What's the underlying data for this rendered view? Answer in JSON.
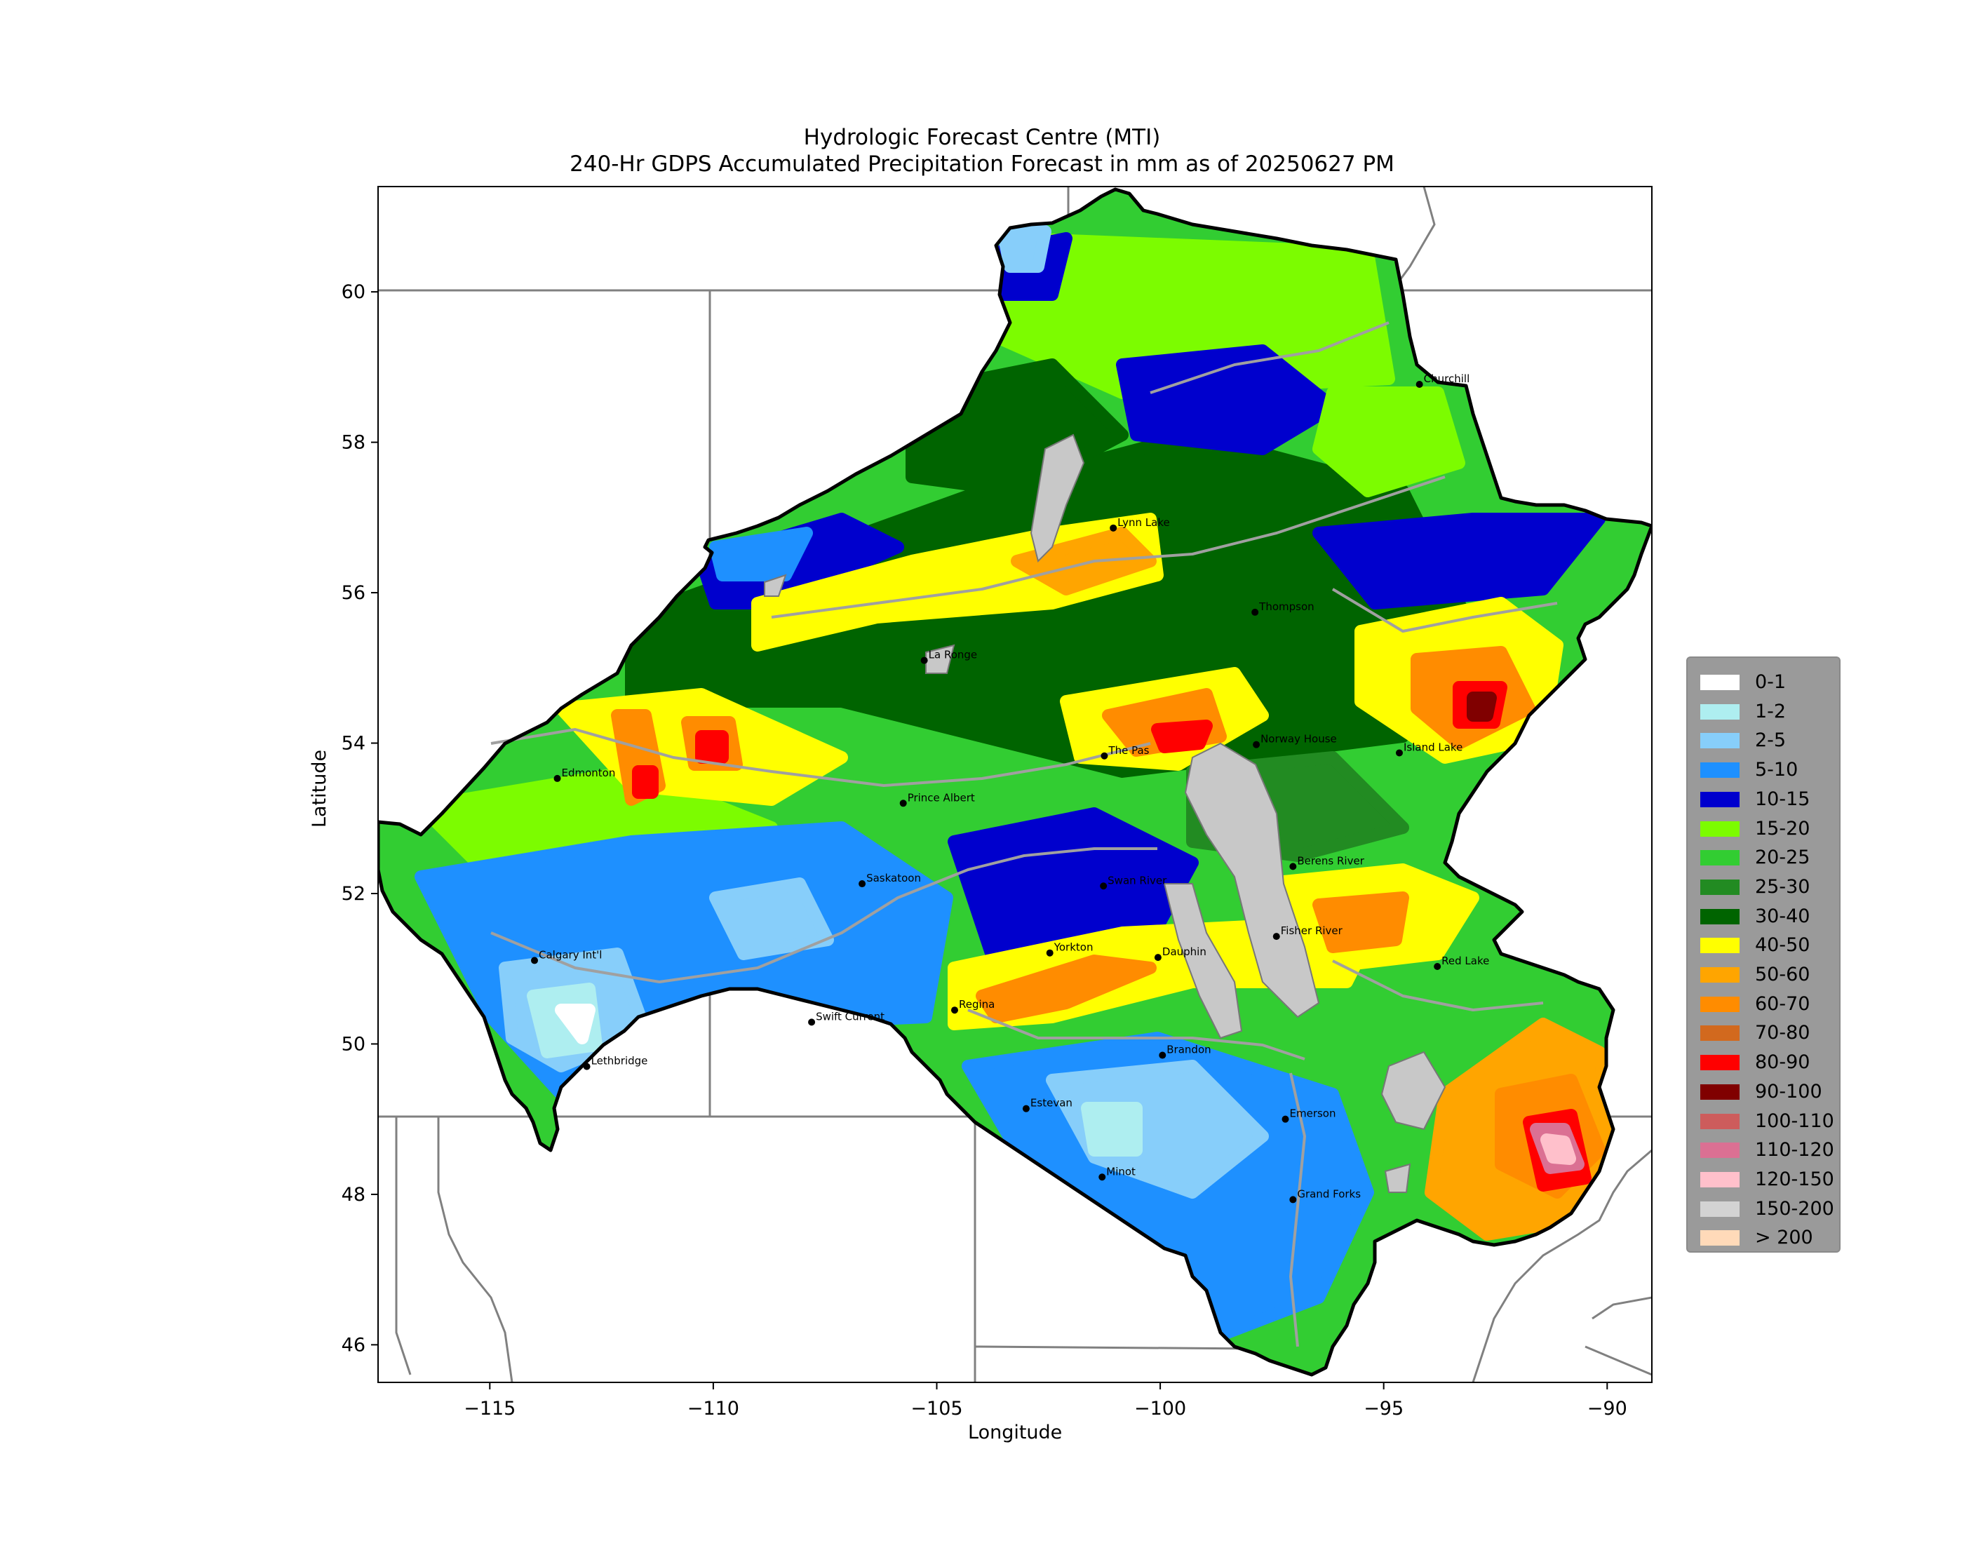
{
  "title": {
    "line1": "Hydrologic Forecast Centre (MTI)",
    "line2": "240-Hr GDPS Accumulated Precipitation Forecast in mm as of 20250627 PM"
  },
  "axes": {
    "xlabel": "Longitude",
    "ylabel": "Latitude",
    "xlim": [
      -117.5,
      -89
    ],
    "ylim": [
      45.5,
      61.4
    ],
    "xticks": [
      {
        "value": -115,
        "label": "−115"
      },
      {
        "value": -110,
        "label": "−110"
      },
      {
        "value": -105,
        "label": "−105"
      },
      {
        "value": -100,
        "label": "−100"
      },
      {
        "value": -95,
        "label": "−95"
      },
      {
        "value": -90,
        "label": "−90"
      }
    ],
    "yticks": [
      {
        "value": 46,
        "label": "46"
      },
      {
        "value": 48,
        "label": "48"
      },
      {
        "value": 50,
        "label": "50"
      },
      {
        "value": 52,
        "label": "52"
      },
      {
        "value": 54,
        "label": "54"
      },
      {
        "value": 56,
        "label": "56"
      },
      {
        "value": 58,
        "label": "58"
      },
      {
        "value": 60,
        "label": "60"
      }
    ]
  },
  "legend": {
    "placement": "right",
    "items": [
      {
        "label": "0-1",
        "color": "#ffffff"
      },
      {
        "label": "1-2",
        "color": "#aeeef0"
      },
      {
        "label": "2-5",
        "color": "#87cefa"
      },
      {
        "label": "5-10",
        "color": "#1e90ff"
      },
      {
        "label": "10-15",
        "color": "#0000cd"
      },
      {
        "label": "15-20",
        "color": "#7cfc00"
      },
      {
        "label": "20-25",
        "color": "#32cd32"
      },
      {
        "label": "25-30",
        "color": "#228b22"
      },
      {
        "label": "30-40",
        "color": "#006400"
      },
      {
        "label": "40-50",
        "color": "#ffff00"
      },
      {
        "label": "50-60",
        "color": "#ffa500"
      },
      {
        "label": "60-70",
        "color": "#ff8c00"
      },
      {
        "label": "70-80",
        "color": "#d2691e"
      },
      {
        "label": "80-90",
        "color": "#ff0000"
      },
      {
        "label": "90-100",
        "color": "#800000"
      },
      {
        "label": "100-110",
        "color": "#cd5c5c"
      },
      {
        "label": "110-120",
        "color": "#db7093"
      },
      {
        "label": "120-150",
        "color": "#ffc0cb"
      },
      {
        "label": "150-200",
        "color": "#d3d3d3"
      },
      {
        "label": "> 200",
        "color": "#ffdab9"
      }
    ]
  },
  "cities": [
    {
      "name": "Churchill",
      "lon": -94.2,
      "lat": 58.77
    },
    {
      "name": "Lynn Lake",
      "lon": -101.05,
      "lat": 56.86
    },
    {
      "name": "Thompson",
      "lon": -97.88,
      "lat": 55.74
    },
    {
      "name": "La Ronge",
      "lon": -105.28,
      "lat": 55.1
    },
    {
      "name": "The Pas",
      "lon": -101.25,
      "lat": 53.83
    },
    {
      "name": "Norway House",
      "lon": -97.85,
      "lat": 53.98
    },
    {
      "name": "Island Lake",
      "lon": -94.65,
      "lat": 53.87
    },
    {
      "name": "Edmonton",
      "lon": -113.49,
      "lat": 53.53
    },
    {
      "name": "Prince Albert",
      "lon": -105.75,
      "lat": 53.2
    },
    {
      "name": "Saskatoon",
      "lon": -106.67,
      "lat": 52.13
    },
    {
      "name": "Berens River",
      "lon": -97.03,
      "lat": 52.36
    },
    {
      "name": "Swan River",
      "lon": -101.27,
      "lat": 52.1
    },
    {
      "name": "Calgary Int'l",
      "lon": -114.0,
      "lat": 51.11
    },
    {
      "name": "Yorkton",
      "lon": -102.47,
      "lat": 51.21
    },
    {
      "name": "Dauphin",
      "lon": -100.05,
      "lat": 51.15
    },
    {
      "name": "Fisher River",
      "lon": -97.4,
      "lat": 51.43
    },
    {
      "name": "Red Lake",
      "lon": -93.8,
      "lat": 51.03
    },
    {
      "name": "Regina",
      "lon": -104.6,
      "lat": 50.45
    },
    {
      "name": "Swift Current",
      "lon": -107.8,
      "lat": 50.29
    },
    {
      "name": "Brandon",
      "lon": -99.95,
      "lat": 49.85
    },
    {
      "name": "Lethbridge",
      "lon": -112.83,
      "lat": 49.7
    },
    {
      "name": "Estevan",
      "lon": -103.0,
      "lat": 49.14
    },
    {
      "name": "Emerson",
      "lon": -97.2,
      "lat": 49.0
    },
    {
      "name": "Minot",
      "lon": -101.3,
      "lat": 48.23
    },
    {
      "name": "Grand Forks",
      "lon": -97.03,
      "lat": 47.93
    }
  ],
  "colors": {
    "outline": "#000000",
    "border": "#808080",
    "river": "#a0a0a0",
    "lake": "#c8c8c8",
    "legend_bg": "#9a9a9a"
  }
}
